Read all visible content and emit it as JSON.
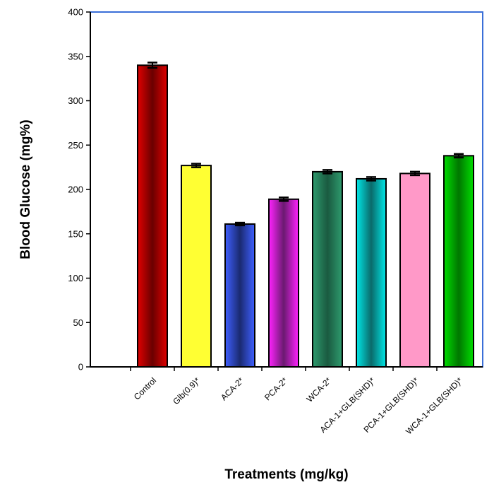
{
  "chart_data": {
    "type": "bar",
    "title": "",
    "xlabel": "Treatments (mg/kg)",
    "ylabel": "Blood Glucose (mg%)",
    "ylim": [
      0,
      400
    ],
    "yticks": [
      0,
      50,
      100,
      150,
      200,
      250,
      300,
      350,
      400
    ],
    "grid": false,
    "categories": [
      "Control",
      "Glb(0.9)*",
      "ACA-2*",
      "PCA-2*",
      "WCA-2*",
      "ACA-1+GLB(SHD)*",
      "PCA-1+GLB(SHD)*",
      "WCA-1+GLB(SHD)*"
    ],
    "values": [
      340,
      227,
      161,
      189,
      220,
      212,
      218,
      238
    ],
    "errors": [
      3,
      2,
      1.5,
      2,
      2,
      2,
      2,
      2
    ],
    "colors": [
      "#e00000",
      "#ffff33",
      "#3f5fff",
      "#ff22ff",
      "#2e9b6e",
      "#00e6e6",
      "#ff99c8",
      "#00dd00"
    ],
    "center_colors": [
      "#6a0000",
      "#ffff33",
      "#1a2a70",
      "#6a1a70",
      "#1a5a40",
      "#0a6a6a",
      "#ff99c8",
      "#007700"
    ]
  }
}
